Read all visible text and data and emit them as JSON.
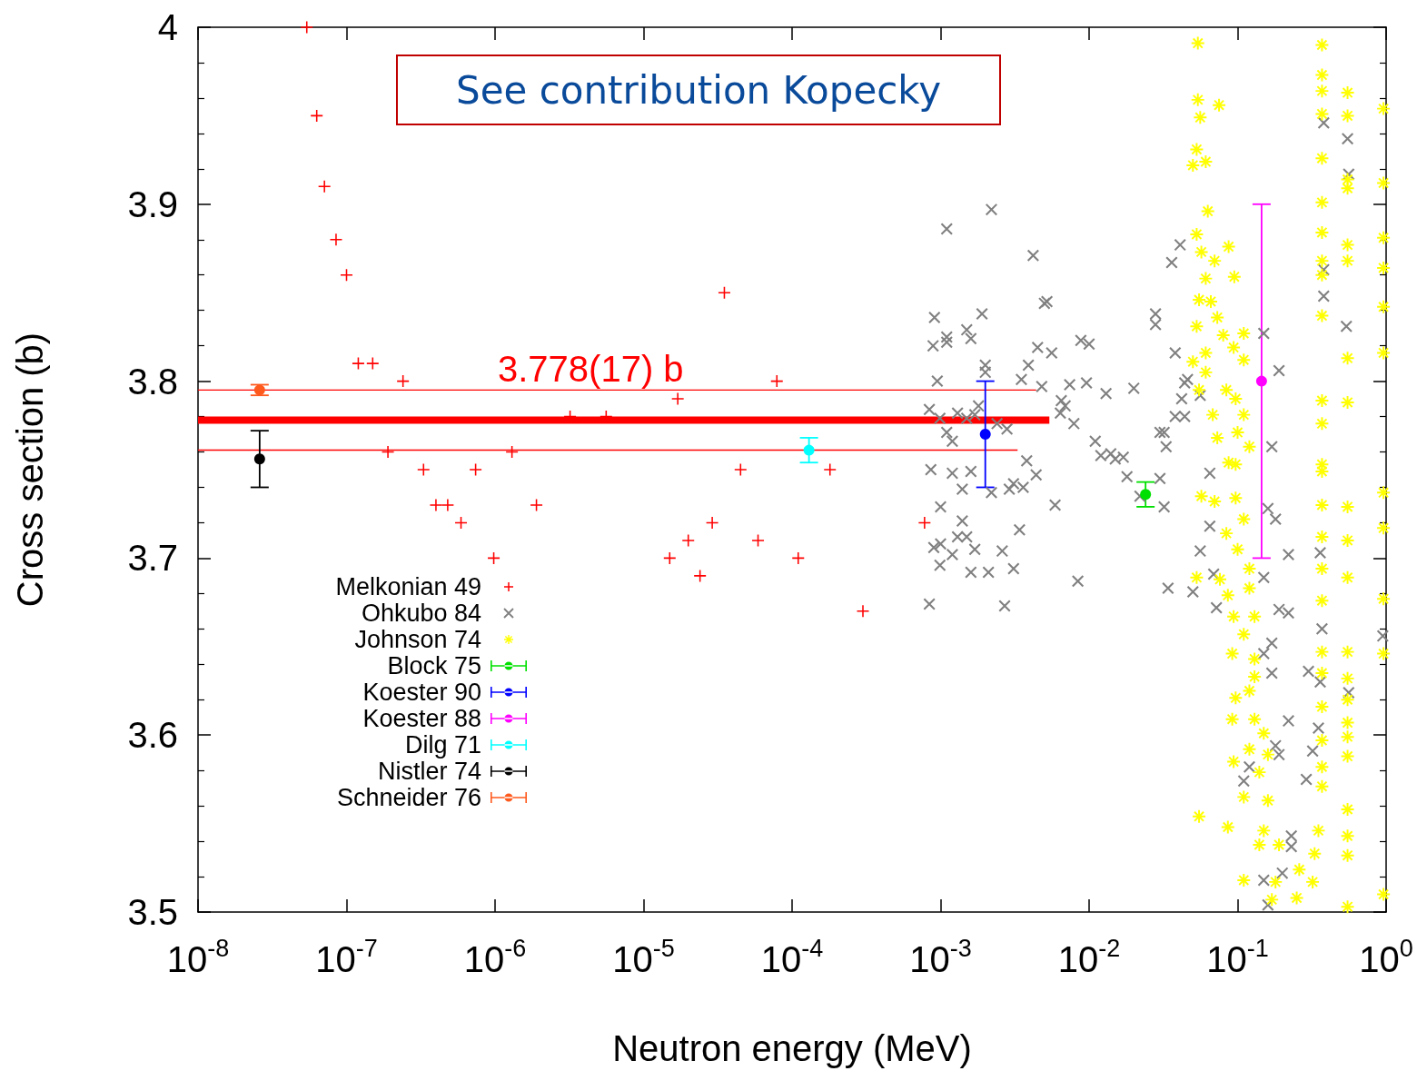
{
  "chart_data": {
    "type": "scatter",
    "xlabel": "Neutron energy (MeV)",
    "ylabel": "Cross section (b)",
    "log": "x",
    "legend": "bottom left",
    "xlim": [
      1e-08,
      1
    ],
    "ylim": [
      3.5,
      4
    ],
    "xticks": [
      {
        "value": 1e-08,
        "label": "10$^{-8}$"
      },
      {
        "value": 1e-07,
        "label": "10$^{-7}$"
      },
      {
        "value": 1e-06,
        "label": "10$^{-6}$"
      },
      {
        "value": 1e-05,
        "label": "10$^{-5}$"
      },
      {
        "value": 0.0001,
        "label": "10$^{-4}$"
      },
      {
        "value": 0.001,
        "label": "10$^{-3}$"
      },
      {
        "value": 0.01,
        "label": "10$^{-2}$"
      },
      {
        "value": 0.1,
        "label": "10$^{-1}$"
      },
      {
        "value": 1,
        "label": "10$^{0}$"
      }
    ],
    "yticks": [
      3.5,
      3.6,
      3.7,
      3.8,
      3.9,
      4
    ],
    "annotations": [
      "See contribution Kopecky",
      "3.778(17) b"
    ],
    "series": [
      {
        "name": "Melkonian 49",
        "color": "#ff0000",
        "marker": "plus",
        "x": [
          5.4e-08,
          6.3e-08,
          7.1e-08,
          8.5e-08,
          1e-07,
          1.2e-07,
          1.5e-07,
          2.4e-07,
          1.9e-07,
          3.3e-07,
          4e-07,
          4.8e-07,
          5.9e-07,
          7.4e-07,
          9.8e-07,
          1.3e-06,
          1.9e-06,
          3.2e-06,
          5.6e-06,
          1.7e-05,
          1.5e-05,
          2e-05,
          2.4e-05,
          2.9e-05,
          3.5e-05,
          4.5e-05,
          5.9e-05,
          7.9e-05,
          0.00011,
          0.00018,
          0.0003,
          0.00078
        ],
        "values": [
          4.0,
          3.95,
          3.91,
          3.88,
          3.86,
          3.81,
          3.81,
          3.8,
          3.76,
          3.75,
          3.73,
          3.73,
          3.72,
          3.75,
          3.7,
          3.76,
          3.73,
          3.78,
          3.78,
          3.79,
          3.7,
          3.71,
          3.69,
          3.72,
          3.85,
          3.75,
          3.71,
          3.8,
          3.7,
          3.75,
          3.67,
          3.72
        ]
      },
      {
        "name": "Ohkubo 84",
        "color": "#808080",
        "marker": "cross",
        "x": [
          0.0022,
          0.0011,
          0.0042,
          0.0052,
          0.005,
          0.00091,
          0.0019,
          0.0015,
          0.0016,
          0.0011,
          0.00089,
          0.0011,
          0.0045,
          0.0056,
          0.0088,
          0.01,
          0.028,
          0.028,
          0.002,
          0.002,
          0.0039,
          0.0035,
          0.00095,
          0.0048,
          0.0074,
          0.0096,
          0.013,
          0.02,
          0.00084,
          0.00099,
          0.0013,
          0.0015,
          0.0018,
          0.0017,
          0.0024,
          0.0028,
          0.0065,
          0.0069,
          0.0064,
          0.0011,
          0.0012,
          0.0079,
          0.011,
          0.012,
          0.014,
          0.017,
          0.015,
          0.03,
          0.018,
          0.00086,
          0.0012,
          0.0016,
          0.0014,
          0.0038,
          0.0044,
          0.0031,
          0.0029,
          0.0036,
          0.0022,
          0.0059,
          0.022,
          0.001,
          0.0014,
          0.0013,
          0.0015,
          0.0009,
          0.001,
          0.0012,
          0.0017,
          0.0026,
          0.0034,
          0.00099,
          0.0016,
          0.0021,
          0.0031,
          0.0084,
          0.00084,
          0.0027,
          0.041,
          0.036,
          0.038,
          0.046,
          0.044,
          0.042,
          0.056,
          0.15,
          0.19,
          0.038,
          0.044,
          0.032,
          0.033,
          0.17,
          0.38,
          0.55,
          0.56,
          0.38,
          0.38,
          0.54,
          0.03,
          0.032,
          0.065,
          0.065,
          0.056,
          0.069,
          0.034,
          0.05,
          0.072,
          0.16,
          0.18,
          0.22,
          0.36,
          0.15,
          0.19,
          0.22,
          0.37,
          0.17,
          0.15,
          0.17,
          0.3,
          0.36,
          0.56,
          0.35,
          0.22,
          0.32,
          0.18,
          0.19,
          0.11,
          0.12,
          0.29,
          0.23,
          0.23,
          0.2,
          0.15,
          0.16,
          0.95
        ],
        "values": [
          3.897,
          3.886,
          3.871,
          3.845,
          3.844,
          3.836,
          3.838,
          3.829,
          3.824,
          3.825,
          3.82,
          3.822,
          3.819,
          3.816,
          3.823,
          3.821,
          3.838,
          3.832,
          3.809,
          3.805,
          3.809,
          3.801,
          3.8,
          3.797,
          3.798,
          3.799,
          3.793,
          3.796,
          3.784,
          3.779,
          3.782,
          3.779,
          3.786,
          3.781,
          3.776,
          3.773,
          3.789,
          3.786,
          3.782,
          3.771,
          3.766,
          3.776,
          3.766,
          3.758,
          3.759,
          3.757,
          3.756,
          3.771,
          3.746,
          3.75,
          3.748,
          3.749,
          3.739,
          3.755,
          3.747,
          3.742,
          3.739,
          3.74,
          3.737,
          3.73,
          3.735,
          3.729,
          3.721,
          3.712,
          3.712,
          3.706,
          3.708,
          3.702,
          3.705,
          3.704,
          3.716,
          3.696,
          3.692,
          3.692,
          3.694,
          3.687,
          3.674,
          3.673,
          3.877,
          3.867,
          3.816,
          3.801,
          3.799,
          3.79,
          3.792,
          3.827,
          3.806,
          3.78,
          3.78,
          3.771,
          3.763,
          3.763,
          3.946,
          3.937,
          3.917,
          3.863,
          3.848,
          3.831,
          3.745,
          3.729,
          3.748,
          3.718,
          3.704,
          3.691,
          3.683,
          3.681,
          3.672,
          3.728,
          3.722,
          3.702,
          3.703,
          3.689,
          3.671,
          3.669,
          3.66,
          3.652,
          3.646,
          3.635,
          3.636,
          3.63,
          3.624,
          3.604,
          3.608,
          3.591,
          3.594,
          3.589,
          3.574,
          3.582,
          3.575,
          3.543,
          3.537,
          3.522,
          3.518,
          3.504,
          3.656
        ]
      },
      {
        "name": "Johnson 74",
        "color": "#ffff00",
        "marker": "star",
        "x": [
          0.054,
          0.054,
          0.075,
          0.056,
          0.053,
          0.05,
          0.061,
          0.063,
          0.053,
          0.087,
          0.057,
          0.07,
          0.095,
          0.061,
          0.055,
          0.066,
          0.053,
          0.073,
          0.08,
          0.11,
          0.061,
          0.094,
          0.05,
          0.11,
          0.061,
          0.084,
          0.055,
          0.097,
          0.068,
          0.11,
          0.073,
          0.1,
          0.12,
          0.087,
          0.097,
          0.057,
          0.07,
          0.097,
          0.084,
          0.11,
          0.1,
          0.12,
          0.053,
          0.076,
          0.086,
          0.12,
          0.094,
          0.13,
          0.11,
          0.092,
          0.13,
          0.13,
          0.097,
          0.12,
          0.092,
          0.13,
          0.15,
          0.12,
          0.16,
          0.094,
          0.14,
          0.11,
          0.16,
          0.055,
          0.086,
          0.15,
          0.19,
          0.14,
          0.11,
          0.18,
          0.26,
          0.17,
          0.25,
          0.32,
          0.33,
          0.35,
          0.37,
          0.37,
          0.37,
          0.37,
          0.37,
          0.37,
          0.37,
          0.37,
          0.37,
          0.37,
          0.37,
          0.37,
          0.37,
          0.37,
          0.37,
          0.37,
          0.37,
          0.37,
          0.37,
          0.37,
          0.37,
          0.37,
          0.37,
          0.37,
          0.55,
          0.55,
          0.55,
          0.55,
          0.55,
          0.55,
          0.55,
          0.55,
          0.55,
          0.55,
          0.55,
          0.55,
          0.55,
          0.55,
          0.55,
          0.55,
          0.55,
          0.55,
          0.55,
          0.55,
          0.55,
          0.96,
          0.96,
          0.96,
          0.96,
          0.96,
          0.96,
          0.96,
          0.96,
          0.96,
          0.96,
          0.96
        ],
        "values": [
          3.991,
          3.959,
          3.956,
          3.949,
          3.931,
          3.922,
          3.924,
          3.896,
          3.883,
          3.876,
          3.873,
          3.868,
          3.859,
          3.858,
          3.846,
          3.845,
          3.831,
          3.836,
          3.826,
          3.827,
          3.816,
          3.819,
          3.811,
          3.812,
          3.805,
          3.795,
          3.795,
          3.79,
          3.781,
          3.781,
          3.768,
          3.771,
          3.763,
          3.754,
          3.753,
          3.735,
          3.732,
          3.734,
          3.714,
          3.722,
          3.705,
          3.694,
          3.689,
          3.688,
          3.679,
          3.683,
          3.667,
          3.667,
          3.657,
          3.646,
          3.643,
          3.633,
          3.621,
          3.625,
          3.609,
          3.609,
          3.601,
          3.592,
          3.589,
          3.585,
          3.579,
          3.565,
          3.563,
          3.554,
          3.548,
          3.546,
          3.538,
          3.538,
          3.518,
          3.517,
          3.524,
          3.507,
          3.508,
          3.517,
          3.533,
          3.546,
          3.99,
          3.973,
          3.964,
          3.951,
          3.926,
          3.901,
          3.884,
          3.868,
          3.86,
          3.837,
          3.789,
          3.776,
          3.753,
          3.749,
          3.73,
          3.712,
          3.694,
          3.676,
          3.647,
          3.635,
          3.616,
          3.597,
          3.582,
          3.571,
          3.963,
          3.95,
          3.914,
          3.909,
          3.877,
          3.868,
          3.813,
          3.788,
          3.729,
          3.71,
          3.689,
          3.647,
          3.632,
          3.62,
          3.607,
          3.599,
          3.588,
          3.558,
          3.543,
          3.532,
          3.503,
          3.954,
          3.912,
          3.881,
          3.864,
          3.842,
          3.816,
          3.737,
          3.717,
          3.677,
          3.646,
          3.51
        ]
      },
      {
        "name": "Block 75",
        "color": "#00e000",
        "marker": "circle",
        "x": [
          0.024
        ],
        "values": [
          3.736
        ],
        "errors": [
          0.007
        ]
      },
      {
        "name": "Koester 90",
        "color": "#0000ff",
        "marker": "circle",
        "x": [
          0.002
        ],
        "values": [
          3.77
        ],
        "errors": [
          0.03
        ]
      },
      {
        "name": "Koester 88",
        "color": "#ff00ff",
        "marker": "circle",
        "x": [
          0.145
        ],
        "values": [
          3.8
        ],
        "errors": [
          0.1
        ]
      },
      {
        "name": "Dilg 71",
        "color": "#00ffff",
        "marker": "circle",
        "x": [
          0.00013
        ],
        "values": [
          3.761
        ],
        "errors": [
          0.007
        ]
      },
      {
        "name": "Nistler 74",
        "color": "#000000",
        "marker": "circle",
        "x": [
          2.6e-08
        ],
        "values": [
          3.756
        ],
        "errors": [
          0.016
        ]
      },
      {
        "name": "Schneider 76",
        "color": "#ff5a1e",
        "marker": "circle",
        "x": [
          2.6e-08
        ],
        "values": [
          3.795
        ],
        "errors": [
          0.003
        ]
      },
      {
        "type": "line",
        "color": "#ff0000",
        "x": [
          1e-08,
          0.0044
        ],
        "values": [
          3.795,
          3.795
        ]
      },
      {
        "type": "line",
        "color": "#ff0000",
        "x": [
          1e-08,
          0.0054
        ],
        "values": [
          3.778,
          3.778
        ]
      },
      {
        "type": "line",
        "color": "#ff0000",
        "x": [
          1e-08,
          0.0033
        ],
        "values": [
          3.761,
          3.761
        ]
      }
    ]
  }
}
